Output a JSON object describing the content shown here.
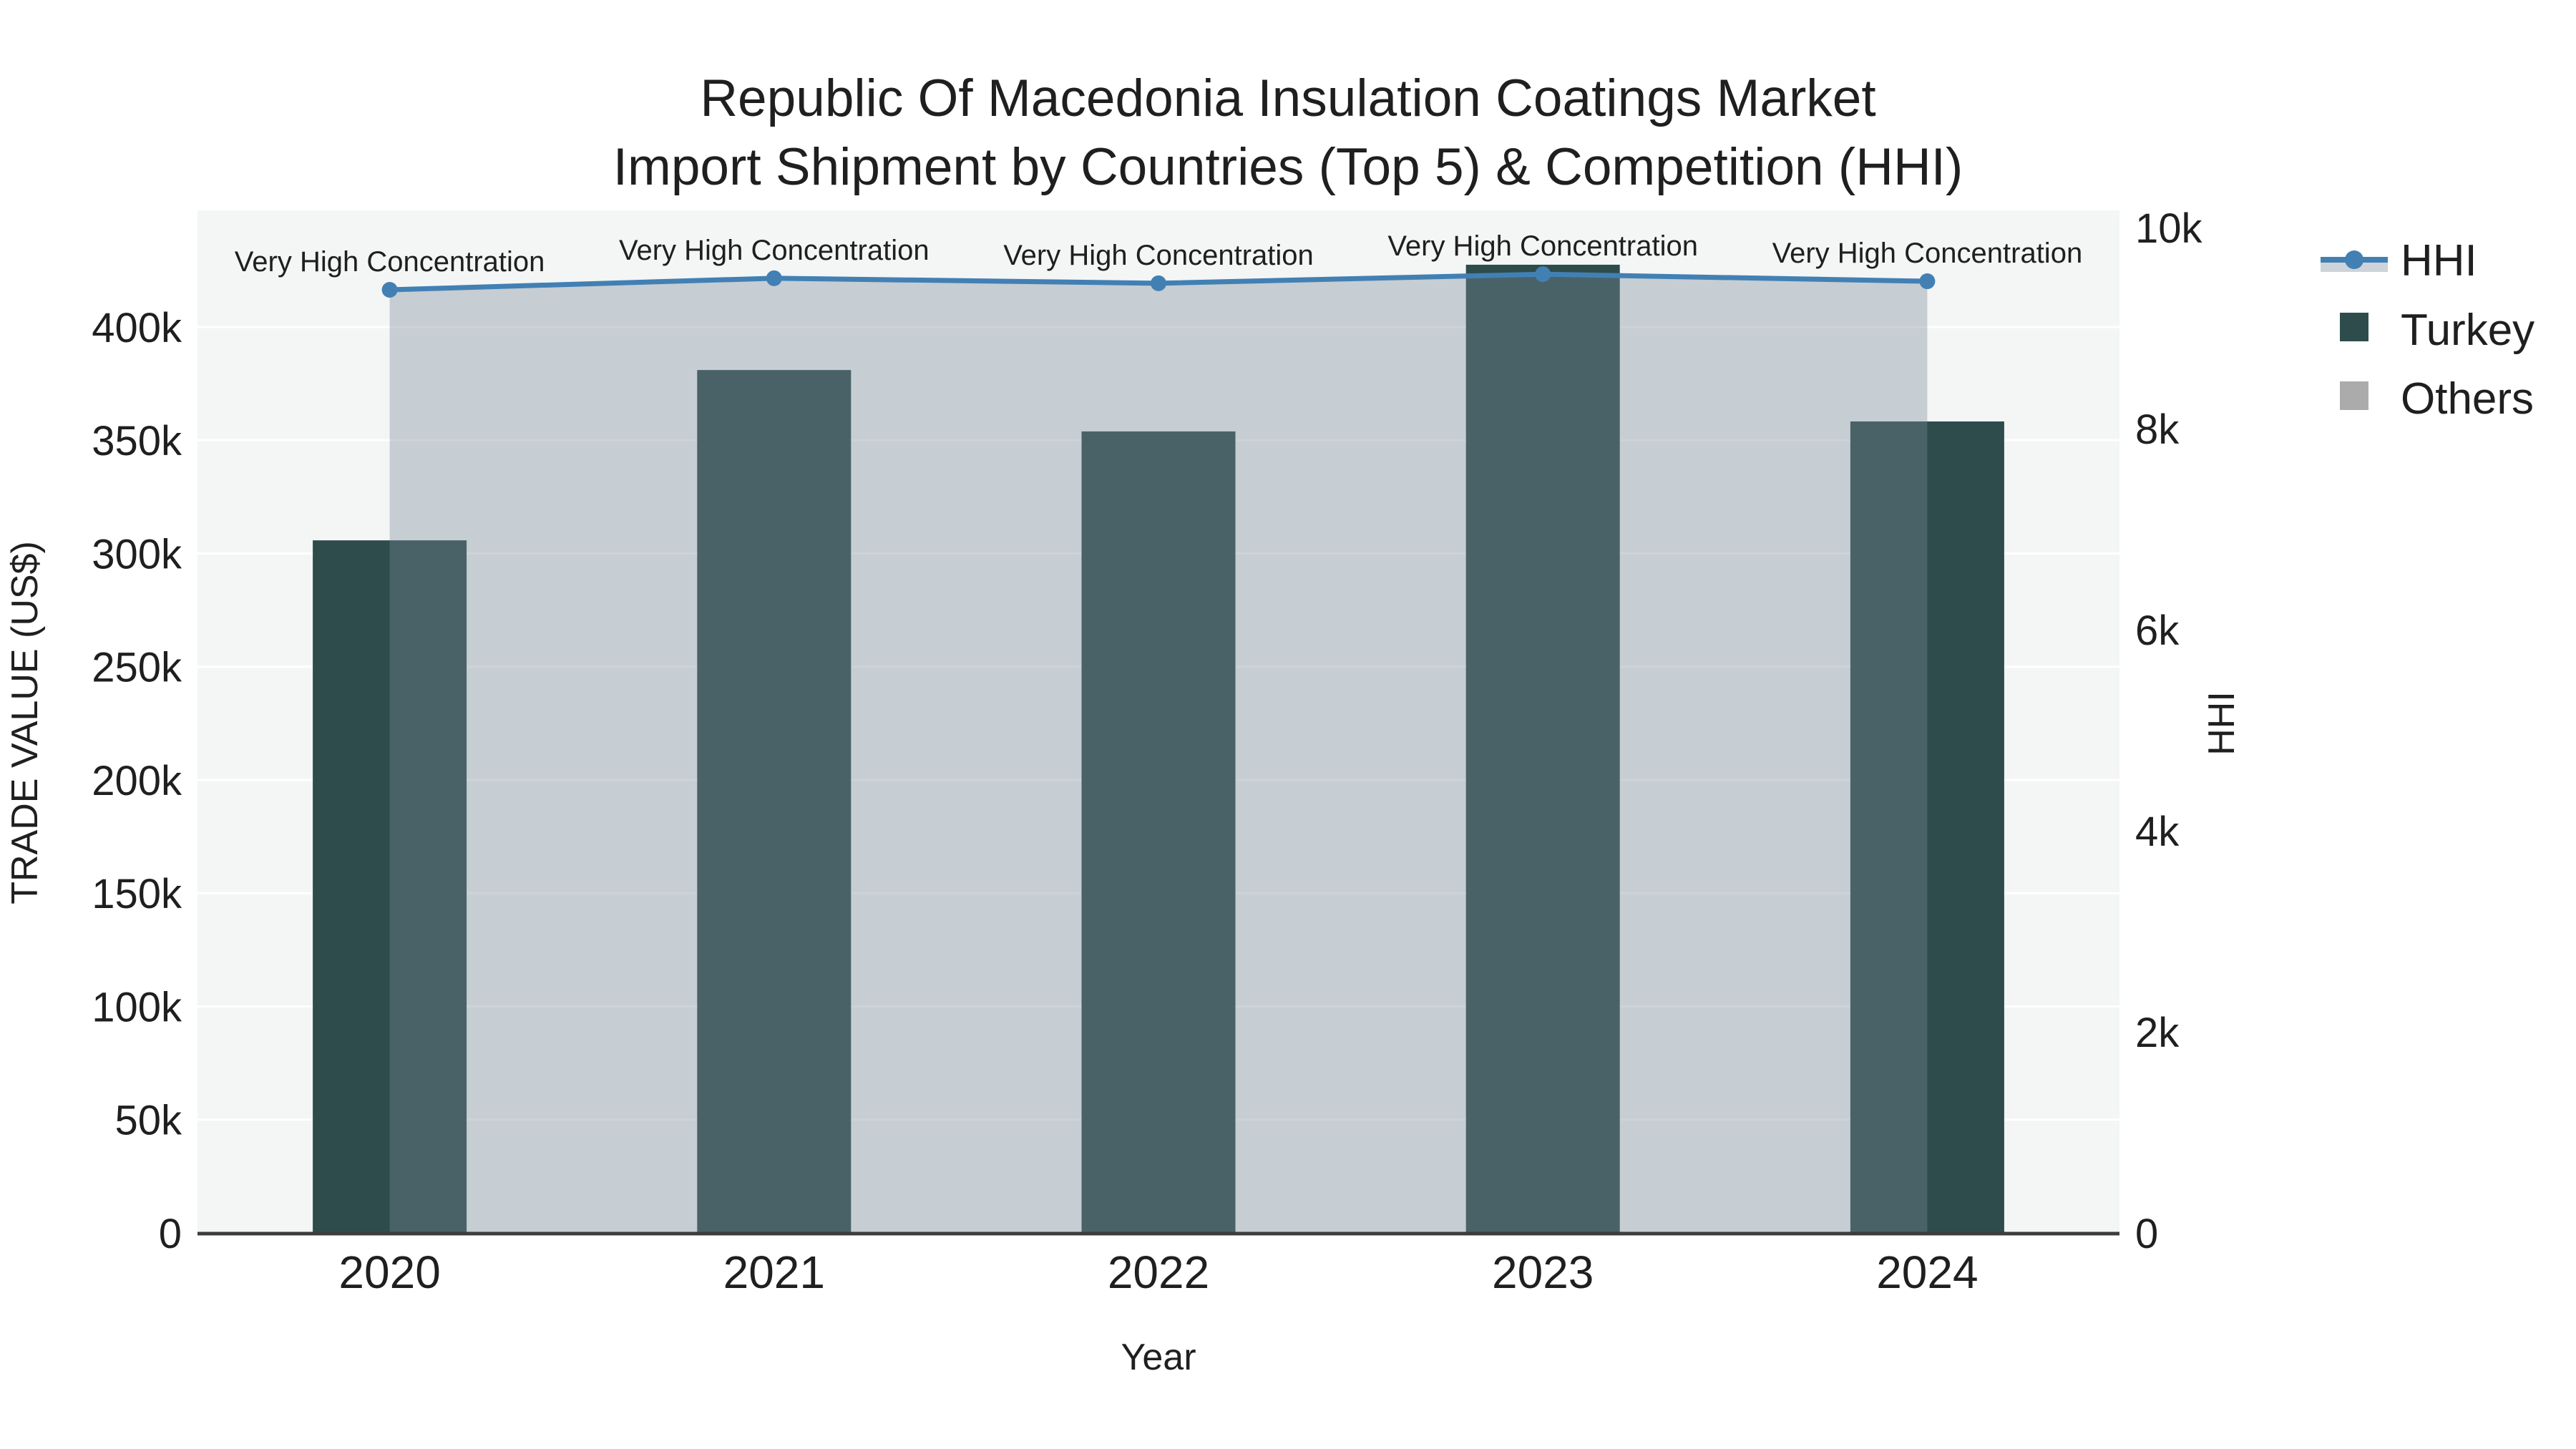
{
  "figure": {
    "title_line1": "Republic Of Macedonia Insulation Coatings Market",
    "title_line2": "Import Shipment by Countries (Top 5) & Competition (HHI)"
  },
  "legend": {
    "items": [
      "HHI",
      "Turkey",
      "Others"
    ]
  },
  "chart_data": {
    "type": "combo (bar + line-with-area)",
    "x_axis": {
      "title": "Year",
      "categories": [
        "2020",
        "2021",
        "2022",
        "2023",
        "2024"
      ]
    },
    "left_axis": {
      "title": "TRADE VALUE (US$)",
      "range": [
        0,
        451500
      ],
      "ticks": [
        {
          "value": 0,
          "label": "0"
        },
        {
          "value": 50000,
          "label": "50k"
        },
        {
          "value": 100000,
          "label": "100k"
        },
        {
          "value": 150000,
          "label": "150k"
        },
        {
          "value": 200000,
          "label": "200k"
        },
        {
          "value": 250000,
          "label": "250k"
        },
        {
          "value": 300000,
          "label": "300k"
        },
        {
          "value": 350000,
          "label": "350k"
        },
        {
          "value": 400000,
          "label": "400k"
        }
      ]
    },
    "right_axis": {
      "title": "HHI",
      "range": [
        0,
        10170
      ],
      "ticks": [
        {
          "value": 0,
          "label": "0"
        },
        {
          "value": 2000,
          "label": "2k"
        },
        {
          "value": 4000,
          "label": "4k"
        },
        {
          "value": 6000,
          "label": "6k"
        },
        {
          "value": 8000,
          "label": "8k"
        },
        {
          "value": 10000,
          "label": "10k"
        }
      ]
    },
    "series": [
      {
        "name": "Turkey",
        "type": "bar",
        "axis": "left",
        "color": "#2E4C4C",
        "values": [
          305800,
          381000,
          353900,
          427500,
          358300
        ]
      },
      {
        "name": "Others",
        "type": "bar",
        "axis": "left",
        "color": "#ABABAB",
        "values": [
          0,
          0,
          0,
          0,
          0
        ],
        "note": "bars not visible in image (≈0)"
      },
      {
        "name": "HHI",
        "type": "line",
        "axis": "right",
        "color": "#4280B4",
        "fill": "rgba(119,136,153,0.37)",
        "line_width": 7,
        "marker": "circle",
        "values": [
          9380,
          9495,
          9445,
          9535,
          9465
        ]
      }
    ],
    "annotations": [
      {
        "x_index": 0,
        "text": "Very High Concentration"
      },
      {
        "x_index": 1,
        "text": "Very High Concentration"
      },
      {
        "x_index": 2,
        "text": "Very High Concentration"
      },
      {
        "x_index": 3,
        "text": "Very High Concentration"
      },
      {
        "x_index": 4,
        "text": "Very High Concentration"
      }
    ],
    "grid": true,
    "plot_background": "#F4F5F5",
    "gridline_color": "#FFFFFF",
    "axis_line_color": "#3C3C3C"
  }
}
